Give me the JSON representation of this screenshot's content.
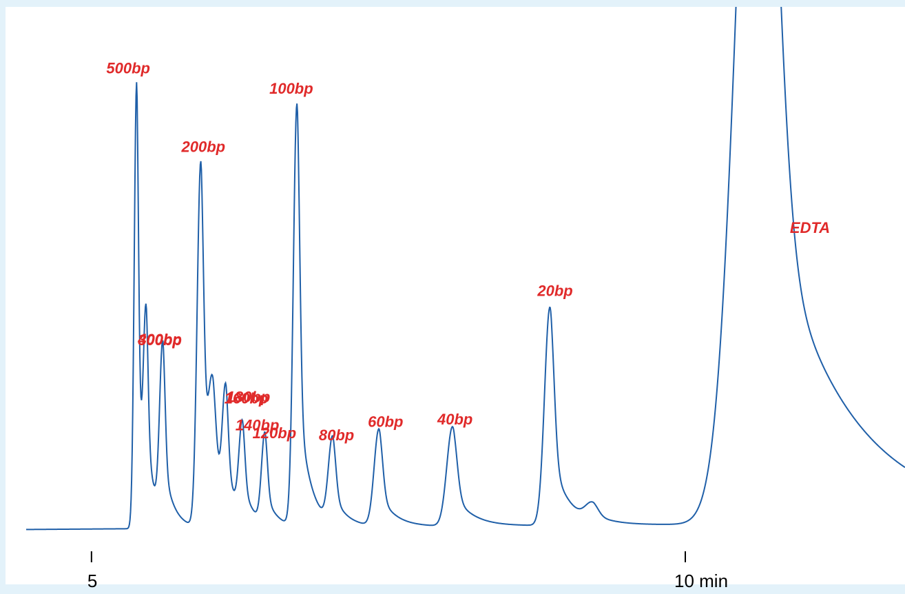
{
  "colors": {
    "background": "#e3f2fa",
    "plot_background": "#ffffff",
    "trace": "#1f5fa8",
    "label": "#e02a2a",
    "title_fragment": "#e0187a",
    "axis": "#000000"
  },
  "chart_data": {
    "type": "line",
    "title": "",
    "xlabel": "",
    "ylabel": "",
    "x_unit": "min",
    "xlim": [
      4.45,
      11.85
    ],
    "ylim": [
      0,
      100
    ],
    "x_ticks": [
      {
        "value": 5,
        "label": "5"
      },
      {
        "value": 10,
        "label": "10 min"
      }
    ],
    "baseline": 2.5,
    "peaks": [
      {
        "label": "500bp",
        "rt": 5.38,
        "height": 92.0,
        "width": 0.02
      },
      {
        "label": "400bp",
        "rt": 5.46,
        "height": 37.0,
        "width": 0.022
      },
      {
        "label": "300bp",
        "rt": 5.6,
        "height": 36.0,
        "width": 0.026
      },
      {
        "label": "200bp",
        "rt": 5.92,
        "height": 75.0,
        "width": 0.03
      },
      {
        "label": "180bp",
        "rt": 6.02,
        "height": 22.0,
        "width": 0.035
      },
      {
        "label": "160bp",
        "rt": 6.13,
        "height": 24.0,
        "width": 0.028
      },
      {
        "label": "140bp",
        "rt": 6.27,
        "height": 19.0,
        "width": 0.028
      },
      {
        "label": "120bp",
        "rt": 6.46,
        "height": 18.5,
        "width": 0.028
      },
      {
        "label": "100bp",
        "rt": 6.73,
        "height": 87.0,
        "width": 0.03
      },
      {
        "label": "80bp",
        "rt": 7.03,
        "height": 17.5,
        "width": 0.035
      },
      {
        "label": "60bp",
        "rt": 7.42,
        "height": 20.0,
        "width": 0.04
      },
      {
        "label": "40bp",
        "rt": 8.04,
        "height": 20.5,
        "width": 0.048
      },
      {
        "label": "20bp",
        "rt": 8.86,
        "height": 45.0,
        "width": 0.045
      },
      {
        "label": "",
        "rt": 9.22,
        "height": 3.5,
        "width": 0.06
      },
      {
        "label": "EDTA",
        "rt": 10.62,
        "height": 190.0,
        "width": 0.18
      }
    ],
    "grid": false,
    "legend": "none"
  }
}
